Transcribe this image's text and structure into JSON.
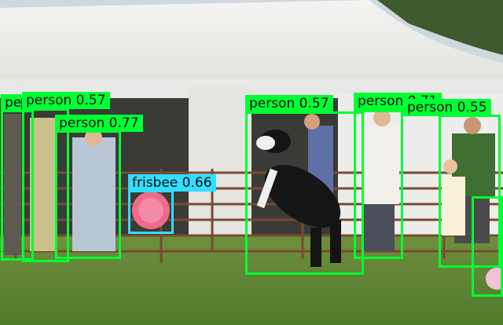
{
  "colors": {
    "person_box": "#00ff33",
    "frisbee_box": "#33ddff",
    "label_text": "#111111"
  },
  "detections": [
    {
      "name": "detection-person-1",
      "cls": "person",
      "label": "pe",
      "label_color": "#00ff33"
    },
    {
      "name": "detection-person-2",
      "cls": "person",
      "label": "person 0.57",
      "label_color": "#00ff33"
    },
    {
      "name": "detection-person-3",
      "cls": "person",
      "label": "person 0.77",
      "label_color": "#00ff33"
    },
    {
      "name": "detection-person-4",
      "cls": "person",
      "label": "person 0.57",
      "label_color": "#00ff33"
    },
    {
      "name": "detection-person-5",
      "cls": "person",
      "label": "person 0.71",
      "label_color": "#00ff33"
    },
    {
      "name": "detection-person-6",
      "cls": "person",
      "label": "person 0.55",
      "label_color": "#00ff33"
    },
    {
      "name": "detection-person-7",
      "cls": "person",
      "label": "",
      "label_color": "#00ff33"
    },
    {
      "name": "detection-frisbee",
      "cls": "frisbee",
      "label": "frisbee 0.66",
      "label_color": "#33ddff"
    }
  ]
}
